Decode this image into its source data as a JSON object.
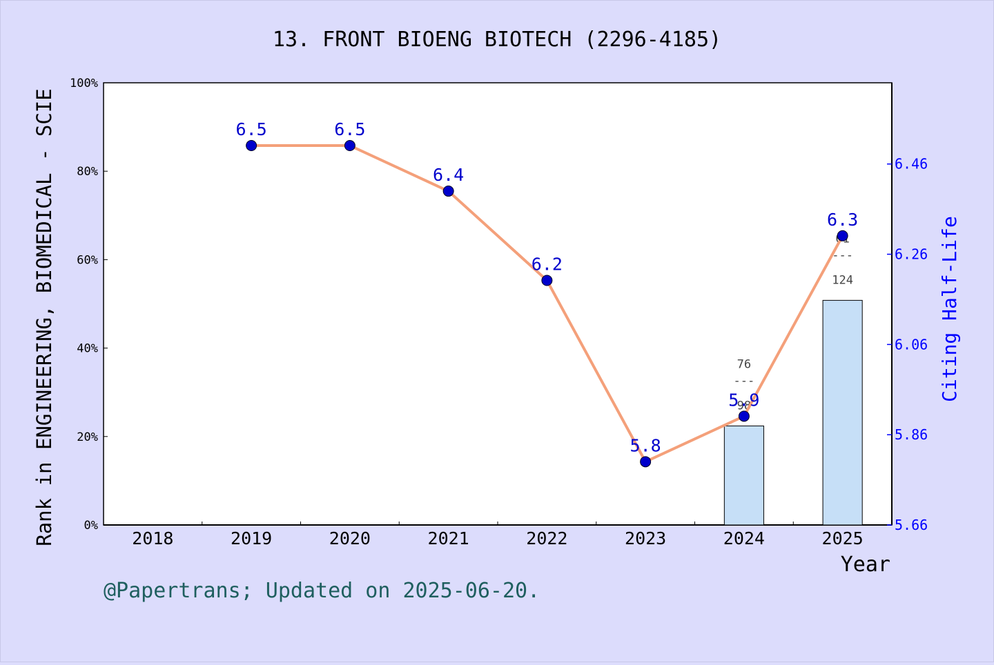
{
  "title": "13. FRONT BIOENG BIOTECH (2296-4185)",
  "footer": "@Papertrans; Updated on 2025-06-20.",
  "colors": {
    "background": "#dcdcfc",
    "plot_bg": "#ffffff",
    "line": "#f4a07a",
    "marker": "#0000cc",
    "point_label": "#0000cc",
    "right_axis": "#0000ff",
    "bar_fill": "#c6dff7",
    "bar_stroke": "#000000",
    "footer": "#1f5f5f",
    "frac_text": "#444444"
  },
  "chart_data": {
    "type": "bar+line",
    "xlabel": "Year",
    "ylabel_left": "Rank in ENGINEERING, BIOMEDICAL - SCIE",
    "ylabel_right": "Citing Half-Life",
    "categories": [
      "2018",
      "2019",
      "2020",
      "2021",
      "2022",
      "2023",
      "2024",
      "2025"
    ],
    "left_axis": {
      "ylim": [
        0,
        100
      ],
      "ticks": [
        "0%",
        "20%",
        "40%",
        "60%",
        "80%",
        "100%"
      ]
    },
    "right_axis": {
      "ylim": [
        5.66,
        6.64
      ],
      "ticks": [
        "5.66",
        "5.86",
        "6.06",
        "6.26",
        "6.46"
      ]
    },
    "bars": [
      {
        "year": "2024",
        "value_pct": 22.4,
        "rank": "76",
        "total": "98",
        "dash": "---"
      },
      {
        "year": "2025",
        "value_pct": 50.8,
        "rank": "61",
        "total": "124",
        "dash": "---"
      }
    ],
    "line_series": {
      "points": [
        {
          "year": "2019",
          "value": 6.5,
          "label": "6.5",
          "pos_pct": 85.8
        },
        {
          "year": "2020",
          "value": 6.5,
          "label": "6.5",
          "pos_pct": 85.8
        },
        {
          "year": "2021",
          "value": 6.4,
          "label": "6.4",
          "pos_pct": 75.5
        },
        {
          "year": "2022",
          "value": 6.2,
          "label": "6.2",
          "pos_pct": 55.3
        },
        {
          "year": "2023",
          "value": 5.8,
          "label": "5.8",
          "pos_pct": 14.3
        },
        {
          "year": "2024",
          "value": 5.9,
          "label": "5.9",
          "pos_pct": 24.6
        },
        {
          "year": "2025",
          "value": 6.3,
          "label": "6.3",
          "pos_pct": 65.4
        }
      ]
    }
  }
}
